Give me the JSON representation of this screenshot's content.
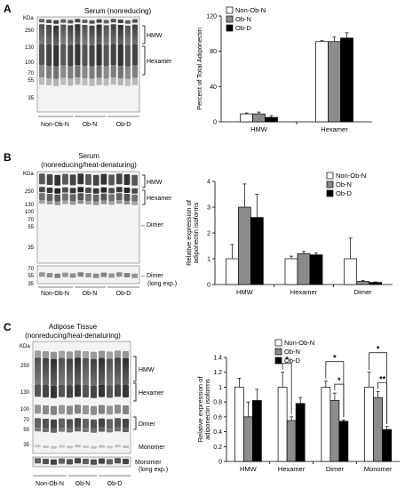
{
  "panels": [
    {
      "letter": "A",
      "blot": {
        "title": "Serum (nonreducing)",
        "kda_label": "KDa",
        "markers": [
          "250",
          "130",
          "100",
          "70",
          "55",
          "35"
        ],
        "right_labels": [
          "HMW",
          "Hexamer"
        ],
        "groups": [
          "Non-Ob-N",
          "Ob-N",
          "Ob-D"
        ]
      }
    },
    {
      "letter": "B",
      "blot": {
        "title_line1": "Serum",
        "title_line2": "(nonreducing/heat-denaturing)",
        "kda_label": "KDa",
        "markers": [
          "250",
          "130",
          "100",
          "70",
          "55",
          "35"
        ],
        "right_labels": [
          "HMW",
          "Hexamer",
          "←Dimer"
        ],
        "lower_markers": [
          "70",
          "55",
          "35"
        ],
        "lower_label_line1": "←Dimer",
        "lower_label_line2": "(long exp.)",
        "groups": [
          "Non-Ob-N",
          "Ob-N",
          "Ob-D"
        ]
      }
    },
    {
      "letter": "C",
      "blot": {
        "title_line1": "Adipose Tissue",
        "title_line2": "(nonreducing/heat-denaturing)",
        "kda_label": "KDa",
        "markers": [
          "250",
          "130",
          "100",
          "70",
          "55",
          "35"
        ],
        "right_labels": [
          "HMW",
          "Hexamer",
          "Dimer",
          "Monomer"
        ],
        "lower_label_line1": "Monomer",
        "lower_label_line2": "(long exp.)",
        "groups": [
          "Non-Ob-N",
          "Ob-N",
          "Ob-D"
        ]
      }
    }
  ],
  "colors": {
    "non_ob_n": "#ffffff",
    "ob_n": "#8c8c8c",
    "ob_d": "#000000"
  },
  "chart_data": [
    {
      "type": "bar",
      "panel": "A",
      "ylabel": "Percent of Total Adiponectin",
      "ylim": [
        0,
        120
      ],
      "yticks": [
        "0",
        "40",
        "80",
        "120"
      ],
      "categories": [
        "HMW",
        "Hexamer"
      ],
      "legend": [
        "Non-Ob-N",
        "Ob-N",
        "Ob-D"
      ],
      "legend_position": "top-left",
      "series": [
        {
          "name": "Non-Ob-N",
          "values": [
            9,
            91
          ],
          "errors": [
            1,
            1
          ]
        },
        {
          "name": "Ob-N",
          "values": [
            9,
            91
          ],
          "errors": [
            2,
            5
          ]
        },
        {
          "name": "Ob-D",
          "values": [
            5,
            95
          ],
          "errors": [
            2,
            6
          ]
        }
      ]
    },
    {
      "type": "bar",
      "panel": "B",
      "ylabel_line1": "Relative expression of",
      "ylabel_line2": "adiponectin isoforms",
      "ylim": [
        0,
        4
      ],
      "yticks": [
        "0",
        "1",
        "2",
        "3",
        "4"
      ],
      "categories": [
        "HMW",
        "Hexamer",
        "Dimer"
      ],
      "legend": [
        "Non-Ob-N",
        "Ob-N",
        "Ob-D"
      ],
      "legend_position": "top-right",
      "series": [
        {
          "name": "Non-Ob-N",
          "values": [
            1.0,
            1.0,
            1.0
          ],
          "errors": [
            0.55,
            0.1,
            0.8
          ]
        },
        {
          "name": "Ob-N",
          "values": [
            3.0,
            1.2,
            0.12
          ],
          "errors": [
            0.9,
            0.08,
            0.03
          ]
        },
        {
          "name": "Ob-D",
          "values": [
            2.6,
            1.15,
            0.08
          ],
          "errors": [
            0.9,
            0.08,
            0.02
          ]
        }
      ]
    },
    {
      "type": "bar",
      "panel": "C",
      "ylabel_line1": "Relative expression of",
      "ylabel_line2": "adiponectin isoforms",
      "ylim": [
        0,
        1.4
      ],
      "yticks": [
        "0",
        "0.2",
        "0.4",
        "0.6",
        "0.8",
        "1",
        "1.2",
        "1.4"
      ],
      "categories": [
        "HMW",
        "Hexamer",
        "Dimer",
        "Monomer"
      ],
      "legend": [
        "Non-Ob-N",
        "Ob-N",
        "Ob-D"
      ],
      "legend_position": "top-right",
      "series": [
        {
          "name": "Non-Ob-N",
          "values": [
            1.0,
            1.0,
            1.0,
            1.0
          ],
          "errors": [
            0.12,
            0.2,
            0.08,
            0.2
          ]
        },
        {
          "name": "Ob-N",
          "values": [
            0.6,
            0.55,
            0.82,
            0.86
          ],
          "errors": [
            0.2,
            0.05,
            0.1,
            0.08
          ]
        },
        {
          "name": "Ob-D",
          "values": [
            0.82,
            0.78,
            0.54,
            0.43
          ],
          "errors": [
            0.15,
            0.08,
            0.02,
            0.04
          ]
        }
      ],
      "significance": [
        {
          "category": "Hexamer",
          "from": "Non-Ob-N",
          "to": "Ob-N",
          "label": "*"
        },
        {
          "category": "Dimer",
          "from": "Non-Ob-N",
          "to": "Ob-D",
          "label": "*"
        },
        {
          "category": "Dimer",
          "from": "Ob-N",
          "to": "Ob-D",
          "label": "*"
        },
        {
          "category": "Monomer",
          "from": "Non-Ob-N",
          "to": "Ob-D",
          "label": "*"
        },
        {
          "category": "Monomer",
          "from": "Ob-N",
          "to": "Ob-D",
          "label": "**"
        }
      ]
    }
  ]
}
